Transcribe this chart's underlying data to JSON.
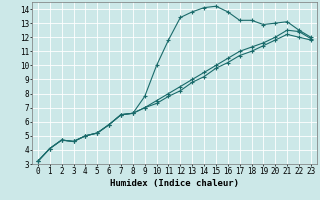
{
  "xlabel": "Humidex (Indice chaleur)",
  "xlim": [
    -0.5,
    23.5
  ],
  "ylim": [
    3,
    14.5
  ],
  "xticks": [
    0,
    1,
    2,
    3,
    4,
    5,
    6,
    7,
    8,
    9,
    10,
    11,
    12,
    13,
    14,
    15,
    16,
    17,
    18,
    19,
    20,
    21,
    22,
    23
  ],
  "yticks": [
    3,
    4,
    5,
    6,
    7,
    8,
    9,
    10,
    11,
    12,
    13,
    14
  ],
  "bg_color": "#cce8e8",
  "line_color": "#1a6b6b",
  "grid_color": "#ffffff",
  "line1_x": [
    0,
    1,
    2,
    3,
    4,
    5,
    6,
    7,
    8,
    9,
    10,
    11,
    12,
    13,
    14,
    15,
    16,
    17,
    18,
    19,
    20,
    21,
    22,
    23
  ],
  "line1_y": [
    3.2,
    4.1,
    4.7,
    4.6,
    5.0,
    5.2,
    5.8,
    6.5,
    6.6,
    7.8,
    10.0,
    11.8,
    13.4,
    13.8,
    14.1,
    14.2,
    13.8,
    13.2,
    13.2,
    12.9,
    13.0,
    13.1,
    12.5,
    12.0
  ],
  "line2_x": [
    0,
    1,
    2,
    3,
    4,
    5,
    6,
    7,
    8,
    9,
    10,
    11,
    12,
    13,
    14,
    15,
    16,
    17,
    18,
    19,
    20,
    21,
    22,
    23
  ],
  "line2_y": [
    3.2,
    4.1,
    4.7,
    4.6,
    5.0,
    5.2,
    5.8,
    6.5,
    6.6,
    7.0,
    7.5,
    8.0,
    8.5,
    9.0,
    9.5,
    10.0,
    10.5,
    11.0,
    11.3,
    11.6,
    12.0,
    12.5,
    12.4,
    11.9
  ],
  "line3_x": [
    0,
    1,
    2,
    3,
    4,
    5,
    6,
    7,
    8,
    9,
    10,
    11,
    12,
    13,
    14,
    15,
    16,
    17,
    18,
    19,
    20,
    21,
    22,
    23
  ],
  "line3_y": [
    3.2,
    4.1,
    4.7,
    4.6,
    5.0,
    5.2,
    5.8,
    6.5,
    6.6,
    7.0,
    7.3,
    7.8,
    8.2,
    8.8,
    9.2,
    9.8,
    10.2,
    10.7,
    11.0,
    11.4,
    11.8,
    12.2,
    12.0,
    11.8
  ],
  "tick_fontsize": 5.5,
  "label_fontsize": 6.5
}
